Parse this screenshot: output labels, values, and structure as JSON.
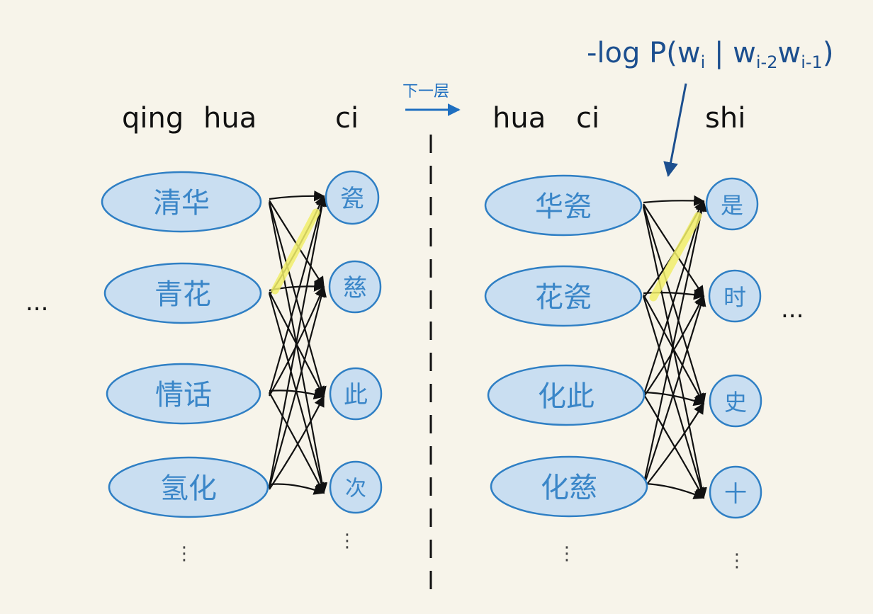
{
  "diagram": {
    "left_panel": {
      "pinyin": [
        "qing",
        "hua",
        "ci"
      ],
      "prev_nodes": [
        "清华",
        "青花",
        "情话",
        "氢化"
      ],
      "next_nodes": [
        "瓷",
        "慈",
        "此",
        "次"
      ]
    },
    "divider_label": "下一层",
    "right_panel": {
      "pinyin": [
        "hua",
        "ci",
        "shi"
      ],
      "prev_nodes": [
        "华瓷",
        "花瓷",
        "化此",
        "化慈"
      ],
      "next_nodes": [
        "是",
        "时",
        "史",
        "十"
      ]
    },
    "formula": "-log P(w",
    "formula_sub1": "i",
    "formula_mid": " | w",
    "formula_sub2": "i-2",
    "formula_w": "w",
    "formula_sub3": "i-1",
    "formula_end": ")",
    "ellipsis": "...",
    "vdots": "⋮",
    "colors": {
      "node_fill": "#c9def1",
      "node_stroke": "#2f7fc4",
      "node_text": "#3a86c8",
      "edge": "#111111",
      "highlight": "#f2ef6a",
      "annotation": "#1c4f8f"
    }
  }
}
